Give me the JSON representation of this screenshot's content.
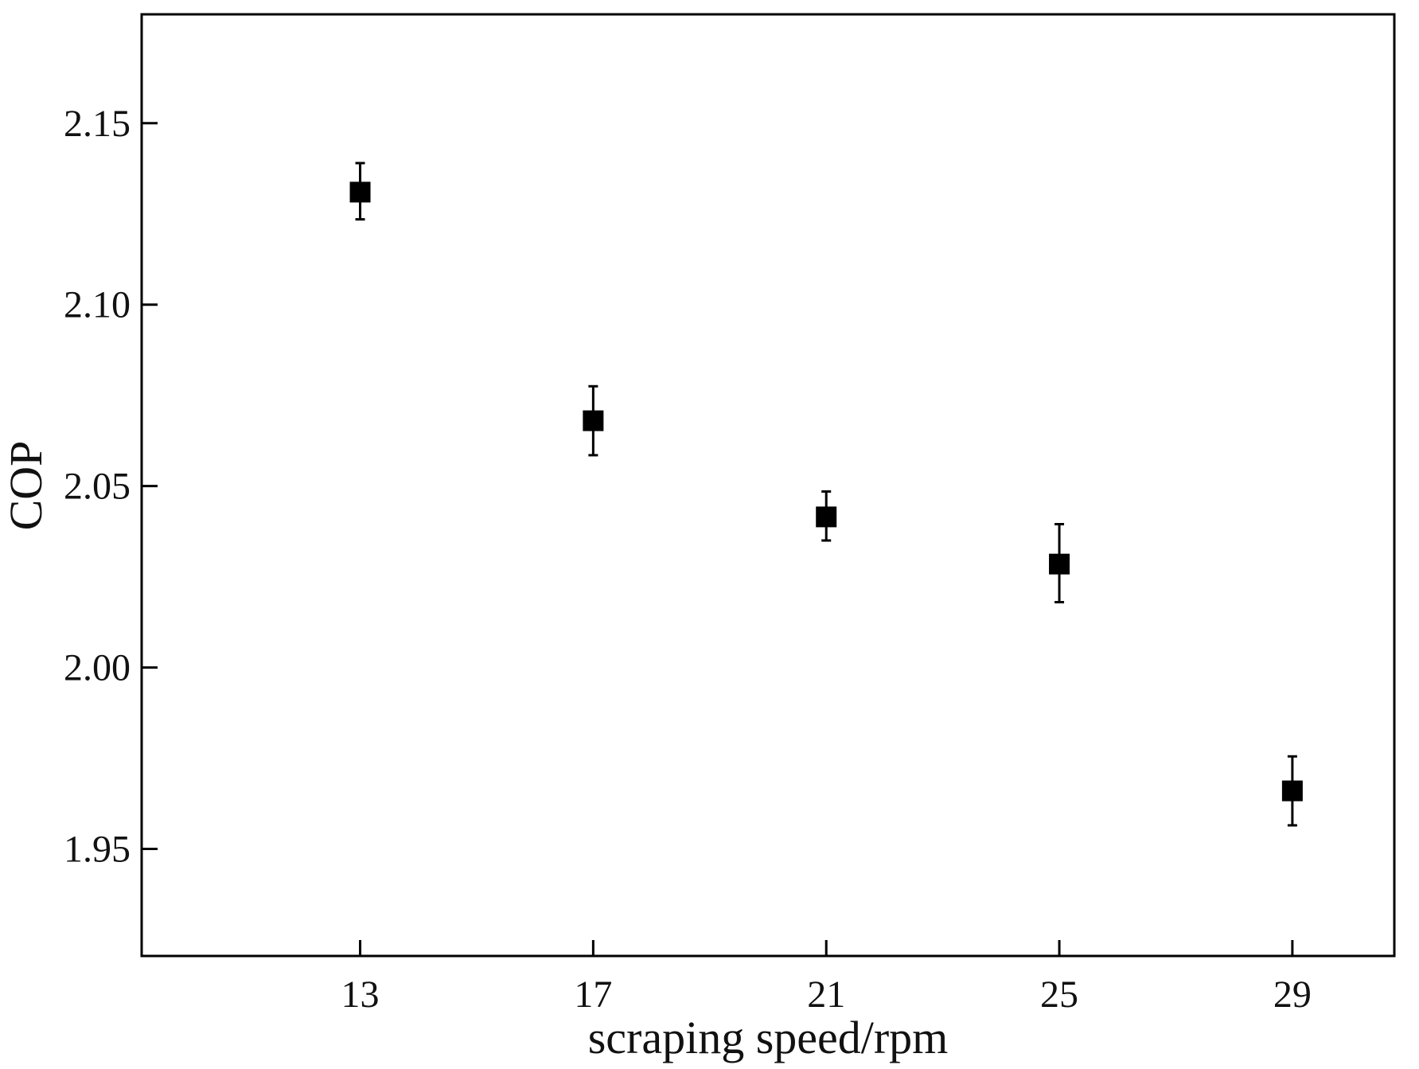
{
  "chart_data": {
    "type": "scatter",
    "title": "",
    "xlabel": "scraping speed/rpm",
    "ylabel": "COP",
    "xlim": [
      9.25,
      30.75
    ],
    "ylim": [
      1.9205,
      2.18
    ],
    "x_ticks": [
      13,
      17,
      21,
      25,
      29
    ],
    "x_tick_labels": [
      "13",
      "17",
      "21",
      "25",
      "29"
    ],
    "y_ticks": [
      1.95,
      2.0,
      2.05,
      2.1,
      2.15
    ],
    "y_tick_labels": [
      "1.95",
      "2.00",
      "2.05",
      "2.10",
      "2.15"
    ],
    "grid": false,
    "legend": "none",
    "marker": "filled-square",
    "color": "#000000",
    "series": [
      {
        "x": [
          13,
          17,
          21,
          25,
          29
        ],
        "y": [
          2.131,
          2.068,
          2.0415,
          2.0285,
          1.966
        ],
        "error_upper": [
          2.139,
          2.0775,
          2.0485,
          2.0395,
          1.9755
        ],
        "error_lower": [
          2.1235,
          2.0585,
          2.035,
          2.018,
          1.9565
        ]
      }
    ]
  }
}
